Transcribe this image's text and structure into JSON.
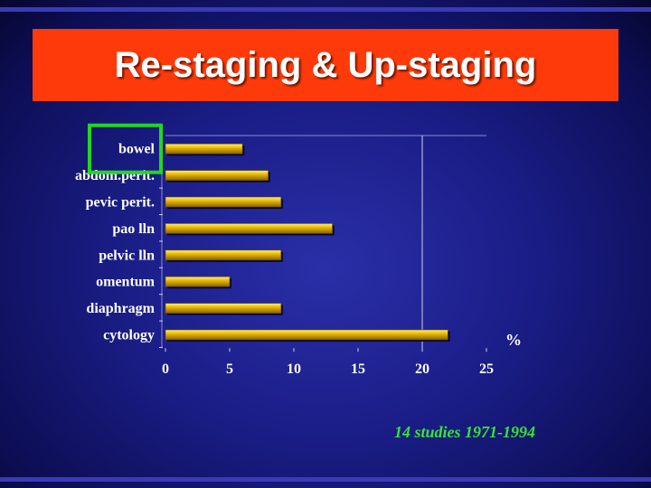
{
  "title": "Re-staging & Up-staging",
  "footnote": "14 studies 1971-1994",
  "colors": {
    "title_background": "#ff3a0a",
    "bar": "#d9a800",
    "highlight_box": "#22d722",
    "footnote_text": "#33e633"
  },
  "chart_data": {
    "type": "bar",
    "orientation": "horizontal",
    "categories": [
      "bowel",
      "abdom.perit.",
      "pevic perit.",
      "pao lln",
      "pelvic lln",
      "omentum",
      "diaphragm",
      "cytology"
    ],
    "values": [
      6,
      8,
      9,
      13,
      9,
      5,
      9,
      22
    ],
    "xlim": [
      0,
      25
    ],
    "xticks": [
      0,
      5,
      10,
      15,
      20,
      25
    ],
    "xlabel": "%",
    "reference_line_x": 20,
    "highlighted_category": "bowel",
    "grid": false
  }
}
